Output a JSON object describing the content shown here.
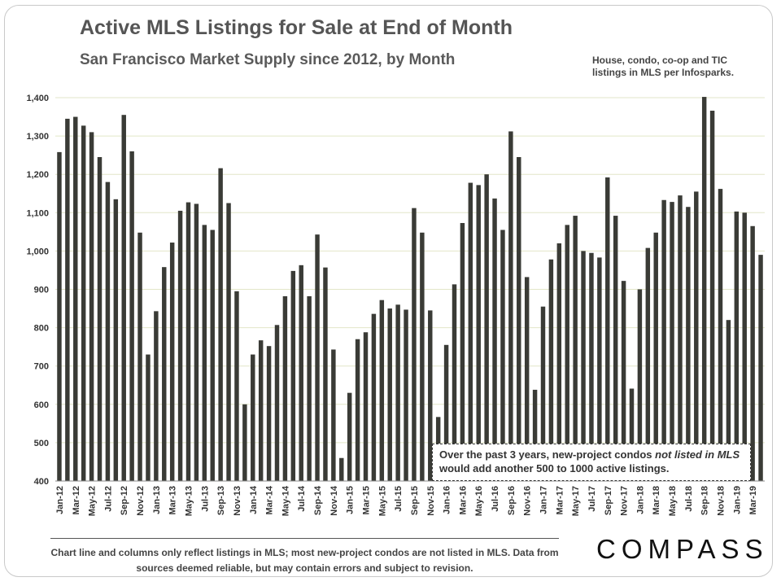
{
  "header": {
    "title": "Active MLS Listings for Sale at End of Month",
    "subtitle": "San Francisco Market Supply since 2012, by Month",
    "note": "House, condo, co-op and TIC listings in MLS per Infosparks."
  },
  "annotation": {
    "part1": "Over the past 3 years, new-project condos ",
    "italic1": "not listed in MLS",
    "part2": " would add another 500 to 1000 active listings."
  },
  "footer": {
    "text": "Chart line and columns only reflect listings in MLS; most new-project condos are not listed in MLS. Data from sources deemed reliable, but may contain errors and subject to revision."
  },
  "logo": {
    "text": "COMPASS"
  },
  "colors": {
    "bar": "#3a3b36",
    "grid": "#e2e6c8",
    "axis": "#888888"
  },
  "chart_data": {
    "type": "bar",
    "title": "Active MLS Listings for Sale at End of Month",
    "subtitle": "San Francisco Market Supply since 2012, by Month",
    "xlabel": "",
    "ylabel": "",
    "ylim": [
      400,
      1400
    ],
    "yticks": [
      400,
      500,
      600,
      700,
      800,
      900,
      1000,
      1100,
      1200,
      1300,
      1400
    ],
    "ytick_labels": [
      "400",
      "500",
      "600",
      "700",
      "800",
      "900",
      "1,000",
      "1,100",
      "1,200",
      "1,300",
      "1,400"
    ],
    "grid": true,
    "categories": [
      "Jan-12",
      "Feb-12",
      "Mar-12",
      "Apr-12",
      "May-12",
      "Jun-12",
      "Jul-12",
      "Aug-12",
      "Sep-12",
      "Oct-12",
      "Nov-12",
      "Dec-12",
      "Jan-13",
      "Feb-13",
      "Mar-13",
      "Apr-13",
      "May-13",
      "Jun-13",
      "Jul-13",
      "Aug-13",
      "Sep-13",
      "Oct-13",
      "Nov-13",
      "Dec-13",
      "Jan-14",
      "Feb-14",
      "Mar-14",
      "Apr-14",
      "May-14",
      "Jun-14",
      "Jul-14",
      "Aug-14",
      "Sep-14",
      "Oct-14",
      "Nov-14",
      "Dec-14",
      "Jan-15",
      "Feb-15",
      "Mar-15",
      "Apr-15",
      "May-15",
      "Jun-15",
      "Jul-15",
      "Aug-15",
      "Sep-15",
      "Oct-15",
      "Nov-15",
      "Dec-15",
      "Jan-16",
      "Feb-16",
      "Mar-16",
      "Apr-16",
      "May-16",
      "Jun-16",
      "Jul-16",
      "Aug-16",
      "Sep-16",
      "Oct-16",
      "Nov-16",
      "Dec-16",
      "Jan-17",
      "Feb-17",
      "Mar-17",
      "Apr-17",
      "May-17",
      "Jun-17",
      "Jul-17",
      "Aug-17",
      "Sep-17",
      "Oct-17",
      "Nov-17",
      "Dec-17",
      "Jan-18",
      "Feb-18",
      "Mar-18",
      "Apr-18",
      "May-18",
      "Jun-18",
      "Jul-18",
      "Aug-18",
      "Sep-18",
      "Oct-18",
      "Nov-18",
      "Dec-18",
      "Jan-19",
      "Feb-19",
      "Mar-19",
      "Apr-19"
    ],
    "values": [
      1258,
      1345,
      1350,
      1327,
      1310,
      1245,
      1180,
      1135,
      1355,
      1260,
      1048,
      730,
      843,
      958,
      1022,
      1105,
      1127,
      1123,
      1068,
      1055,
      1216,
      1125,
      895,
      600,
      730,
      767,
      752,
      807,
      882,
      948,
      963,
      882,
      1043,
      957,
      743,
      460,
      630,
      770,
      788,
      836,
      872,
      850,
      860,
      847,
      1112,
      1048,
      845,
      567,
      755,
      913,
      1073,
      1178,
      1172,
      1200,
      1137,
      1055,
      1312,
      1245,
      932,
      638,
      855,
      978,
      1020,
      1068,
      1092,
      1000,
      995,
      983,
      1192,
      1092,
      922,
      641,
      900,
      1008,
      1048,
      1133,
      1128,
      1145,
      1115,
      1155,
      1402,
      1366,
      1162,
      820,
      1103,
      1100,
      1065,
      990
    ],
    "labeled_ticks": [
      "Jan-12",
      "Mar-12",
      "May-12",
      "Jul-12",
      "Sep-12",
      "Nov-12",
      "Jan-13",
      "Mar-13",
      "May-13",
      "Jul-13",
      "Sep-13",
      "Nov-13",
      "Jan-14",
      "Mar-14",
      "May-14",
      "Jul-14",
      "Sep-14",
      "Nov-14",
      "Jan-15",
      "Mar-15",
      "May-15",
      "Jul-15",
      "Sep-15",
      "Nov-15",
      "Jan-16",
      "Mar-16",
      "May-16",
      "Jul-16",
      "Sep-16",
      "Nov-16",
      "Jan-17",
      "Mar-17",
      "May-17",
      "Jul-17",
      "Sep-17",
      "Nov-17",
      "Jan-18",
      "Mar-18",
      "May-18",
      "Jul-18",
      "Sep-18",
      "Nov-18",
      "Jan-19",
      "Mar-19"
    ]
  }
}
